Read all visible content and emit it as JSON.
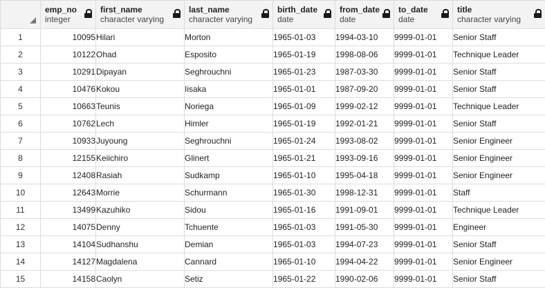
{
  "columns": [
    {
      "name": "emp_no",
      "type": "integer"
    },
    {
      "name": "first_name",
      "type": "character varying"
    },
    {
      "name": "last_name",
      "type": "character varying"
    },
    {
      "name": "birth_date",
      "type": "date"
    },
    {
      "name": "from_date",
      "type": "date"
    },
    {
      "name": "to_date",
      "type": "date"
    },
    {
      "name": "title",
      "type": "character varying"
    }
  ],
  "rows": [
    {
      "n": "1",
      "emp_no": "10095",
      "first_name": "Hilari",
      "last_name": "Morton",
      "birth_date": "1965-01-03",
      "from_date": "1994-03-10",
      "to_date": "9999-01-01",
      "title": "Senior Staff"
    },
    {
      "n": "2",
      "emp_no": "10122",
      "first_name": "Ohad",
      "last_name": "Esposito",
      "birth_date": "1965-01-19",
      "from_date": "1998-08-06",
      "to_date": "9999-01-01",
      "title": "Technique Leader"
    },
    {
      "n": "3",
      "emp_no": "10291",
      "first_name": "Dipayan",
      "last_name": "Seghrouchni",
      "birth_date": "1965-01-23",
      "from_date": "1987-03-30",
      "to_date": "9999-01-01",
      "title": "Senior Staff"
    },
    {
      "n": "4",
      "emp_no": "10476",
      "first_name": "Kokou",
      "last_name": "Iisaka",
      "birth_date": "1965-01-01",
      "from_date": "1987-09-20",
      "to_date": "9999-01-01",
      "title": "Senior Staff"
    },
    {
      "n": "5",
      "emp_no": "10663",
      "first_name": "Teunis",
      "last_name": "Noriega",
      "birth_date": "1965-01-09",
      "from_date": "1999-02-12",
      "to_date": "9999-01-01",
      "title": "Technique Leader"
    },
    {
      "n": "6",
      "emp_no": "10762",
      "first_name": "Lech",
      "last_name": "Himler",
      "birth_date": "1965-01-19",
      "from_date": "1992-01-21",
      "to_date": "9999-01-01",
      "title": "Senior Staff"
    },
    {
      "n": "7",
      "emp_no": "10933",
      "first_name": "Juyoung",
      "last_name": "Seghrouchni",
      "birth_date": "1965-01-24",
      "from_date": "1993-08-02",
      "to_date": "9999-01-01",
      "title": "Senior Engineer"
    },
    {
      "n": "8",
      "emp_no": "12155",
      "first_name": "Keiichiro",
      "last_name": "Glinert",
      "birth_date": "1965-01-21",
      "from_date": "1993-09-16",
      "to_date": "9999-01-01",
      "title": "Senior Engineer"
    },
    {
      "n": "9",
      "emp_no": "12408",
      "first_name": "Rasiah",
      "last_name": "Sudkamp",
      "birth_date": "1965-01-10",
      "from_date": "1995-04-18",
      "to_date": "9999-01-01",
      "title": "Senior Engineer"
    },
    {
      "n": "10",
      "emp_no": "12643",
      "first_name": "Morrie",
      "last_name": "Schurmann",
      "birth_date": "1965-01-30",
      "from_date": "1998-12-31",
      "to_date": "9999-01-01",
      "title": "Staff"
    },
    {
      "n": "11",
      "emp_no": "13499",
      "first_name": "Kazuhiko",
      "last_name": "Sidou",
      "birth_date": "1965-01-16",
      "from_date": "1991-09-01",
      "to_date": "9999-01-01",
      "title": "Technique Leader"
    },
    {
      "n": "12",
      "emp_no": "14075",
      "first_name": "Denny",
      "last_name": "Tchuente",
      "birth_date": "1965-01-03",
      "from_date": "1991-05-30",
      "to_date": "9999-01-01",
      "title": "Engineer"
    },
    {
      "n": "13",
      "emp_no": "14104",
      "first_name": "Sudhanshu",
      "last_name": "Demian",
      "birth_date": "1965-01-03",
      "from_date": "1994-07-23",
      "to_date": "9999-01-01",
      "title": "Senior Staff"
    },
    {
      "n": "14",
      "emp_no": "14127",
      "first_name": "Magdalena",
      "last_name": "Cannard",
      "birth_date": "1965-01-10",
      "from_date": "1994-04-22",
      "to_date": "9999-01-01",
      "title": "Senior Engineer"
    },
    {
      "n": "15",
      "emp_no": "14158",
      "first_name": "Caolyn",
      "last_name": "Setiz",
      "birth_date": "1965-01-22",
      "from_date": "1990-02-06",
      "to_date": "9999-01-01",
      "title": "Senior Staff"
    }
  ]
}
